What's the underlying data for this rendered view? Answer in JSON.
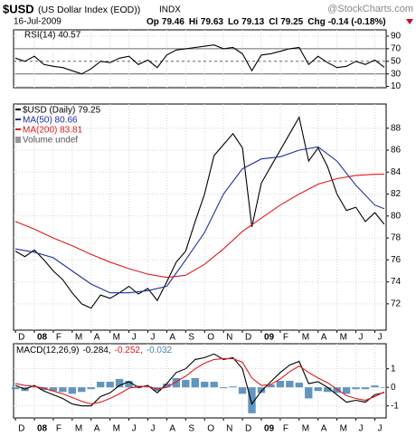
{
  "header": {
    "symbol": "$USD",
    "name": "(US Dollar Index (EOD))",
    "exchange": "INDX",
    "watermark": "@StockCharts.com",
    "date": "16-Jul-2009",
    "quote": [
      {
        "label": "Op",
        "value": 79.46
      },
      {
        "label": "Hi",
        "value": 79.63
      },
      {
        "label": "Lo",
        "value": 79.13
      },
      {
        "label": "Cl",
        "value": 79.25
      },
      {
        "label": "Chg",
        "value": "-0.14 (-0.18%)"
      }
    ]
  },
  "chart_data": [
    {
      "type": "line",
      "xlim": [
        -0.1,
        19.6
      ],
      "xticks": [
        0,
        1,
        2,
        3,
        4,
        5,
        6,
        7,
        8,
        9,
        10,
        11,
        12,
        13,
        14,
        15,
        16,
        17,
        18,
        19
      ],
      "ylim": [
        8,
        100
      ],
      "yticks": [
        90,
        70,
        50,
        30,
        10
      ],
      "grid": true,
      "series": [
        {
          "name": "RSI(14) 40.57",
          "color": "#000000",
          "x": [
            0,
            0.5,
            1,
            1.5,
            2,
            2.5,
            3,
            3.5,
            4,
            4.5,
            5,
            5.5,
            6,
            6.5,
            7,
            7.5,
            8,
            8.5,
            9,
            9.5,
            10,
            10.5,
            11,
            11.5,
            12,
            12.5,
            13,
            13.5,
            14,
            14.5,
            15,
            15.5,
            16,
            16.5,
            17,
            17.5,
            18,
            18.5,
            19,
            19.5
          ],
          "values": [
            55,
            50,
            58,
            45,
            42,
            40,
            35,
            30,
            38,
            50,
            48,
            55,
            58,
            45,
            52,
            40,
            60,
            68,
            70,
            72,
            74,
            76,
            70,
            72,
            62,
            35,
            60,
            62,
            66,
            70,
            72,
            45,
            58,
            48,
            40,
            42,
            50,
            45,
            52,
            40.57
          ]
        }
      ]
    },
    {
      "type": "line",
      "xlim": [
        -0.1,
        19.6
      ],
      "xticks": [
        {
          "value": 0,
          "label": "D"
        },
        {
          "value": 1,
          "label": "08"
        },
        {
          "value": 2,
          "label": "F"
        },
        {
          "value": 3,
          "label": "M"
        },
        {
          "value": 4,
          "label": "A"
        },
        {
          "value": 5,
          "label": "M"
        },
        {
          "value": 6,
          "label": "J"
        },
        {
          "value": 7,
          "label": "J"
        },
        {
          "value": 8,
          "label": "A"
        },
        {
          "value": 9,
          "label": "S"
        },
        {
          "value": 10,
          "label": "O"
        },
        {
          "value": 11,
          "label": "N"
        },
        {
          "value": 12,
          "label": "D"
        },
        {
          "value": 13,
          "label": "09"
        },
        {
          "value": 14,
          "label": "F"
        },
        {
          "value": 15,
          "label": "M"
        },
        {
          "value": 16,
          "label": "A"
        },
        {
          "value": 17,
          "label": "M"
        },
        {
          "value": 18,
          "label": "J"
        },
        {
          "value": 19,
          "label": "J"
        }
      ],
      "ylim": [
        69.6,
        90.2
      ],
      "yticks": [
        88,
        86,
        84,
        82,
        80,
        78,
        76,
        74,
        72
      ],
      "grid": true,
      "legend_extra": "Volume undef",
      "series": [
        {
          "name": "$USD (Daily) 79.25",
          "color": "#000000",
          "x": [
            0,
            0.5,
            1,
            1.5,
            2,
            2.5,
            3,
            3.5,
            4,
            4.5,
            5,
            5.5,
            6,
            6.5,
            7,
            7.5,
            8,
            8.5,
            9,
            9.5,
            10,
            10.5,
            11,
            11.5,
            12,
            12.5,
            13,
            13.5,
            14,
            14.5,
            15,
            15.5,
            16,
            16.5,
            17,
            17.5,
            18,
            18.5,
            19,
            19.5
          ],
          "values": [
            76.8,
            76.3,
            76.9,
            76.0,
            75.0,
            74.2,
            73.0,
            72.0,
            71.6,
            72.8,
            72.5,
            73.0,
            73.6,
            72.9,
            73.4,
            72.3,
            74.0,
            75.8,
            76.8,
            79.5,
            82.0,
            85.5,
            86.5,
            87.5,
            86.2,
            79.0,
            83.0,
            84.5,
            86.0,
            87.5,
            89.0,
            85.0,
            86.2,
            84.5,
            82.0,
            80.5,
            80.8,
            79.5,
            80.3,
            79.25
          ]
        },
        {
          "name": "MA(50) 80.66",
          "color": "#1f2f9c",
          "x": [
            0,
            1,
            2,
            3,
            4,
            5,
            6,
            7,
            8,
            9,
            10,
            11,
            12,
            13,
            14,
            15,
            16,
            17,
            18,
            19,
            19.5
          ],
          "values": [
            77.0,
            76.7,
            76.2,
            75.0,
            73.8,
            73.0,
            73.0,
            73.2,
            73.6,
            76.0,
            78.5,
            82.0,
            84.3,
            85.2,
            85.4,
            86.0,
            86.3,
            85.0,
            82.8,
            81.0,
            80.66
          ]
        },
        {
          "name": "MA(200) 83.81",
          "color": "#e0191b",
          "x": [
            0,
            1,
            2,
            3,
            4,
            5,
            6,
            7,
            8,
            9,
            10,
            11,
            12,
            13,
            14,
            15,
            16,
            17,
            18,
            19,
            19.5
          ],
          "values": [
            79.5,
            78.8,
            78.0,
            77.3,
            76.5,
            75.8,
            75.2,
            74.7,
            74.4,
            74.6,
            75.6,
            77.0,
            78.6,
            79.8,
            81.0,
            82.0,
            82.9,
            83.4,
            83.7,
            83.8,
            83.81
          ]
        }
      ]
    },
    {
      "type": "line",
      "title": "MACD(12,26,9)",
      "xlim": [
        -0.1,
        19.6
      ],
      "xticks": [
        {
          "value": 0,
          "label": "D"
        },
        {
          "value": 1,
          "label": "08"
        },
        {
          "value": 2,
          "label": "F"
        },
        {
          "value": 3,
          "label": "M"
        },
        {
          "value": 4,
          "label": "A"
        },
        {
          "value": 5,
          "label": "M"
        },
        {
          "value": 6,
          "label": "J"
        },
        {
          "value": 7,
          "label": "J"
        },
        {
          "value": 8,
          "label": "A"
        },
        {
          "value": 9,
          "label": "S"
        },
        {
          "value": 10,
          "label": "O"
        },
        {
          "value": 11,
          "label": "N"
        },
        {
          "value": 12,
          "label": "D"
        },
        {
          "value": 13,
          "label": "09"
        },
        {
          "value": 14,
          "label": "F"
        },
        {
          "value": 15,
          "label": "M"
        },
        {
          "value": 16,
          "label": "A"
        },
        {
          "value": 17,
          "label": "M"
        },
        {
          "value": 18,
          "label": "J"
        },
        {
          "value": 19,
          "label": "J"
        }
      ],
      "ylim": [
        -1.65,
        2.35
      ],
      "yticks": [
        1,
        0,
        -1
      ],
      "grid": true,
      "series": [
        {
          "name": "-0.032",
          "color": "#4682b4",
          "type": "bar",
          "x": [
            0,
            0.5,
            1,
            1.5,
            2,
            2.5,
            3,
            3.5,
            4,
            4.5,
            5,
            5.5,
            6,
            6.5,
            7,
            7.5,
            8,
            8.5,
            9,
            9.5,
            10,
            10.5,
            11,
            11.5,
            12,
            12.5,
            13,
            13.5,
            14,
            14.5,
            15,
            15.5,
            16,
            16.5,
            17,
            17.5,
            18,
            18.5,
            19,
            19.5
          ],
          "values": [
            -0.1,
            -0.2,
            0.05,
            -0.15,
            -0.2,
            -0.25,
            -0.35,
            -0.25,
            -0.1,
            0.3,
            0.3,
            0.45,
            0.35,
            -0.05,
            0.05,
            -0.2,
            0.2,
            0.5,
            0.4,
            0.5,
            0.3,
            0.3,
            -0.05,
            0.05,
            -0.35,
            -1.4,
            -0.3,
            0.15,
            0.35,
            0.35,
            0.25,
            -0.6,
            -0.2,
            -0.25,
            -0.3,
            -0.35,
            -0.1,
            -0.1,
            0.1,
            -0.032
          ]
        },
        {
          "name": "-0.284,",
          "color": "#000000",
          "x": [
            0,
            0.5,
            1,
            1.5,
            2,
            2.5,
            3,
            3.5,
            4,
            4.5,
            5,
            5.5,
            6,
            6.5,
            7,
            7.5,
            8,
            8.5,
            9,
            9.5,
            10,
            10.5,
            11,
            11.5,
            12,
            12.5,
            13,
            13.5,
            14,
            14.5,
            15,
            15.5,
            16,
            16.5,
            17,
            17.5,
            18,
            18.5,
            19,
            19.5
          ],
          "values": [
            0.1,
            -0.1,
            0.1,
            -0.2,
            -0.4,
            -0.6,
            -0.9,
            -1.0,
            -1.0,
            -0.5,
            -0.3,
            0.1,
            0.3,
            0.0,
            0.1,
            -0.3,
            0.2,
            0.8,
            1.0,
            1.5,
            1.6,
            1.8,
            1.5,
            1.6,
            1.0,
            -0.9,
            -0.2,
            0.3,
            0.8,
            1.2,
            1.4,
            0.2,
            0.3,
            0.0,
            -0.4,
            -0.8,
            -0.7,
            -0.8,
            -0.4,
            -0.284
          ]
        },
        {
          "name": "-0.252,",
          "color": "#e0191b",
          "x": [
            0,
            0.5,
            1,
            1.5,
            2,
            2.5,
            3,
            3.5,
            4,
            4.5,
            5,
            5.5,
            6,
            6.5,
            7,
            7.5,
            8,
            8.5,
            9,
            9.5,
            10,
            10.5,
            11,
            11.5,
            12,
            12.5,
            13,
            13.5,
            14,
            14.5,
            15,
            15.5,
            16,
            16.5,
            17,
            17.5,
            18,
            18.5,
            19,
            19.5
          ],
          "values": [
            0.2,
            0.1,
            0.05,
            -0.05,
            -0.2,
            -0.35,
            -0.55,
            -0.75,
            -0.9,
            -0.8,
            -0.6,
            -0.35,
            -0.05,
            0.05,
            0.05,
            -0.1,
            0.0,
            0.3,
            0.6,
            1.0,
            1.3,
            1.5,
            1.55,
            1.55,
            1.35,
            0.5,
            0.1,
            0.15,
            0.45,
            0.85,
            1.15,
            0.8,
            0.5,
            0.25,
            -0.1,
            -0.45,
            -0.6,
            -0.7,
            -0.5,
            -0.252
          ]
        }
      ]
    }
  ]
}
